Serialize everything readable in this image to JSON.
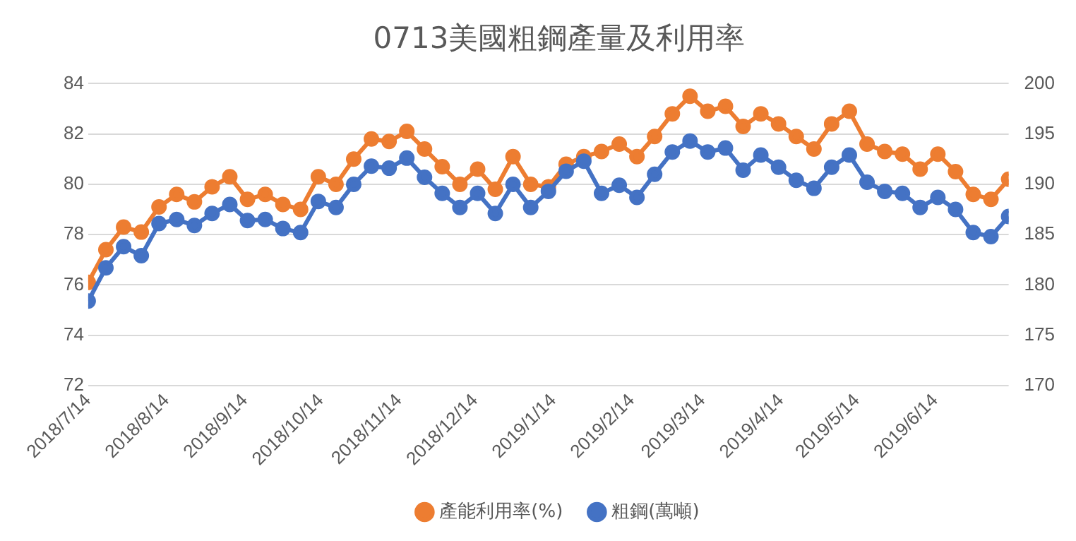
{
  "chart_data": {
    "type": "line",
    "title": "0713美國粗鋼產量及利用率",
    "x": [
      "2018-07-14",
      "2018-07-21",
      "2018-07-28",
      "2018-08-04",
      "2018-08-11",
      "2018-08-18",
      "2018-08-25",
      "2018-09-01",
      "2018-09-08",
      "2018-09-15",
      "2018-09-22",
      "2018-09-29",
      "2018-10-06",
      "2018-10-13",
      "2018-10-20",
      "2018-10-27",
      "2018-11-03",
      "2018-11-10",
      "2018-11-17",
      "2018-11-24",
      "2018-12-01",
      "2018-12-08",
      "2018-12-15",
      "2018-12-22",
      "2018-12-29",
      "2019-01-05",
      "2019-01-12",
      "2019-01-19",
      "2019-01-26",
      "2019-02-02",
      "2019-02-09",
      "2019-02-16",
      "2019-02-23",
      "2019-03-02",
      "2019-03-09",
      "2019-03-16",
      "2019-03-23",
      "2019-03-30",
      "2019-04-06",
      "2019-04-13",
      "2019-04-20",
      "2019-04-27",
      "2019-05-04",
      "2019-05-11",
      "2019-05-18",
      "2019-05-25",
      "2019-06-01",
      "2019-06-08",
      "2019-06-15",
      "2019-06-22",
      "2019-06-29",
      "2019-07-06",
      "2019-07-13"
    ],
    "series": [
      {
        "name": "產能利用率(%)",
        "color": "#ed7d31",
        "values": [
          76.1,
          77.4,
          78.3,
          78.1,
          79.1,
          79.6,
          79.3,
          79.9,
          80.3,
          79.4,
          79.6,
          79.2,
          79.0,
          80.3,
          80.0,
          81.0,
          81.8,
          81.7,
          82.1,
          81.4,
          80.7,
          80.0,
          80.6,
          79.8,
          81.1,
          80.0,
          79.9,
          80.8,
          81.1,
          81.3,
          81.6,
          81.1,
          81.9,
          82.8,
          83.5,
          82.9,
          83.1,
          82.3,
          82.8,
          82.4,
          81.9,
          81.4,
          82.4,
          82.9,
          81.6,
          81.3,
          81.2,
          80.6,
          81.2,
          80.5,
          79.6,
          79.4,
          80.2
        ]
      },
      {
        "name": "粗鋼(萬噸)",
        "color": "#4472c4",
        "axis": "y2",
        "values": [
          178.4,
          181.7,
          183.8,
          182.9,
          186.1,
          186.5,
          185.9,
          187.1,
          188.0,
          186.4,
          186.5,
          185.6,
          185.2,
          188.3,
          187.7,
          190.0,
          191.8,
          191.6,
          192.6,
          190.7,
          189.1,
          187.7,
          189.1,
          187.1,
          190.0,
          187.7,
          189.3,
          191.3,
          192.3,
          189.1,
          189.9,
          188.7,
          191.0,
          193.2,
          194.3,
          193.2,
          193.6,
          191.4,
          192.9,
          191.7,
          190.4,
          189.6,
          191.7,
          192.9,
          190.2,
          189.3,
          189.1,
          187.7,
          188.7,
          187.5,
          185.2,
          184.8,
          186.8
        ]
      }
    ],
    "xlim": [
      "2018-07-14",
      "2019-07-13"
    ],
    "xticks": [
      {
        "value": "2018-07-14",
        "label": "2018/7/14"
      },
      {
        "value": "2018-08-14",
        "label": "2018/8/14"
      },
      {
        "value": "2018-09-14",
        "label": "2018/9/14"
      },
      {
        "value": "2018-10-14",
        "label": "2018/10/14"
      },
      {
        "value": "2018-11-14",
        "label": "2018/11/14"
      },
      {
        "value": "2018-12-14",
        "label": "2018/12/14"
      },
      {
        "value": "2019-01-14",
        "label": "2019/1/14"
      },
      {
        "value": "2019-02-14",
        "label": "2019/2/14"
      },
      {
        "value": "2019-03-14",
        "label": "2019/3/14"
      },
      {
        "value": "2019-04-14",
        "label": "2019/4/14"
      },
      {
        "value": "2019-05-14",
        "label": "2019/5/14"
      },
      {
        "value": "2019-06-14",
        "label": "2019/6/14"
      }
    ],
    "ylim": [
      72,
      84
    ],
    "yticks": [
      72,
      74,
      76,
      78,
      80,
      82,
      84
    ],
    "y2lim": [
      170,
      200
    ],
    "y2ticks": [
      170,
      175,
      180,
      185,
      190,
      195,
      200
    ],
    "grid": "y",
    "legend": "bottom",
    "marker": "circle",
    "line_style": "solid"
  }
}
